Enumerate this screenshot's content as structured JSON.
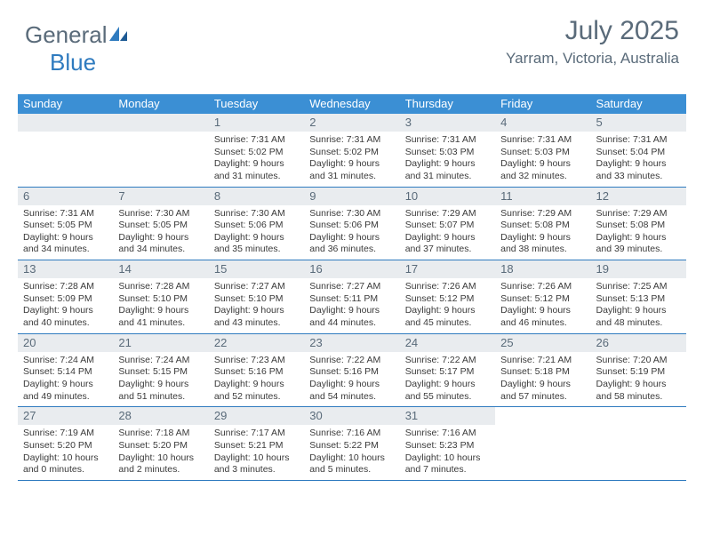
{
  "brand": {
    "part1": "General",
    "part2": "Blue"
  },
  "header": {
    "month_title": "July 2025",
    "location": "Yarram, Victoria, Australia"
  },
  "colors": {
    "header_bg": "#3b8fd4",
    "daynum_bg": "#e9ecef",
    "rule": "#2f7bbf",
    "title_color": "#5a6b7a"
  },
  "weekdays": [
    "Sunday",
    "Monday",
    "Tuesday",
    "Wednesday",
    "Thursday",
    "Friday",
    "Saturday"
  ],
  "weeks": [
    [
      null,
      null,
      {
        "n": "1",
        "sr": "7:31 AM",
        "ss": "5:02 PM",
        "dl": "9 hours and 31 minutes."
      },
      {
        "n": "2",
        "sr": "7:31 AM",
        "ss": "5:02 PM",
        "dl": "9 hours and 31 minutes."
      },
      {
        "n": "3",
        "sr": "7:31 AM",
        "ss": "5:03 PM",
        "dl": "9 hours and 31 minutes."
      },
      {
        "n": "4",
        "sr": "7:31 AM",
        "ss": "5:03 PM",
        "dl": "9 hours and 32 minutes."
      },
      {
        "n": "5",
        "sr": "7:31 AM",
        "ss": "5:04 PM",
        "dl": "9 hours and 33 minutes."
      }
    ],
    [
      {
        "n": "6",
        "sr": "7:31 AM",
        "ss": "5:05 PM",
        "dl": "9 hours and 34 minutes."
      },
      {
        "n": "7",
        "sr": "7:30 AM",
        "ss": "5:05 PM",
        "dl": "9 hours and 34 minutes."
      },
      {
        "n": "8",
        "sr": "7:30 AM",
        "ss": "5:06 PM",
        "dl": "9 hours and 35 minutes."
      },
      {
        "n": "9",
        "sr": "7:30 AM",
        "ss": "5:06 PM",
        "dl": "9 hours and 36 minutes."
      },
      {
        "n": "10",
        "sr": "7:29 AM",
        "ss": "5:07 PM",
        "dl": "9 hours and 37 minutes."
      },
      {
        "n": "11",
        "sr": "7:29 AM",
        "ss": "5:08 PM",
        "dl": "9 hours and 38 minutes."
      },
      {
        "n": "12",
        "sr": "7:29 AM",
        "ss": "5:08 PM",
        "dl": "9 hours and 39 minutes."
      }
    ],
    [
      {
        "n": "13",
        "sr": "7:28 AM",
        "ss": "5:09 PM",
        "dl": "9 hours and 40 minutes."
      },
      {
        "n": "14",
        "sr": "7:28 AM",
        "ss": "5:10 PM",
        "dl": "9 hours and 41 minutes."
      },
      {
        "n": "15",
        "sr": "7:27 AM",
        "ss": "5:10 PM",
        "dl": "9 hours and 43 minutes."
      },
      {
        "n": "16",
        "sr": "7:27 AM",
        "ss": "5:11 PM",
        "dl": "9 hours and 44 minutes."
      },
      {
        "n": "17",
        "sr": "7:26 AM",
        "ss": "5:12 PM",
        "dl": "9 hours and 45 minutes."
      },
      {
        "n": "18",
        "sr": "7:26 AM",
        "ss": "5:12 PM",
        "dl": "9 hours and 46 minutes."
      },
      {
        "n": "19",
        "sr": "7:25 AM",
        "ss": "5:13 PM",
        "dl": "9 hours and 48 minutes."
      }
    ],
    [
      {
        "n": "20",
        "sr": "7:24 AM",
        "ss": "5:14 PM",
        "dl": "9 hours and 49 minutes."
      },
      {
        "n": "21",
        "sr": "7:24 AM",
        "ss": "5:15 PM",
        "dl": "9 hours and 51 minutes."
      },
      {
        "n": "22",
        "sr": "7:23 AM",
        "ss": "5:16 PM",
        "dl": "9 hours and 52 minutes."
      },
      {
        "n": "23",
        "sr": "7:22 AM",
        "ss": "5:16 PM",
        "dl": "9 hours and 54 minutes."
      },
      {
        "n": "24",
        "sr": "7:22 AM",
        "ss": "5:17 PM",
        "dl": "9 hours and 55 minutes."
      },
      {
        "n": "25",
        "sr": "7:21 AM",
        "ss": "5:18 PM",
        "dl": "9 hours and 57 minutes."
      },
      {
        "n": "26",
        "sr": "7:20 AM",
        "ss": "5:19 PM",
        "dl": "9 hours and 58 minutes."
      }
    ],
    [
      {
        "n": "27",
        "sr": "7:19 AM",
        "ss": "5:20 PM",
        "dl": "10 hours and 0 minutes."
      },
      {
        "n": "28",
        "sr": "7:18 AM",
        "ss": "5:20 PM",
        "dl": "10 hours and 2 minutes."
      },
      {
        "n": "29",
        "sr": "7:17 AM",
        "ss": "5:21 PM",
        "dl": "10 hours and 3 minutes."
      },
      {
        "n": "30",
        "sr": "7:16 AM",
        "ss": "5:22 PM",
        "dl": "10 hours and 5 minutes."
      },
      {
        "n": "31",
        "sr": "7:16 AM",
        "ss": "5:23 PM",
        "dl": "10 hours and 7 minutes."
      },
      null,
      null
    ]
  ],
  "labels": {
    "sunrise": "Sunrise:",
    "sunset": "Sunset:",
    "daylight": "Daylight:"
  }
}
